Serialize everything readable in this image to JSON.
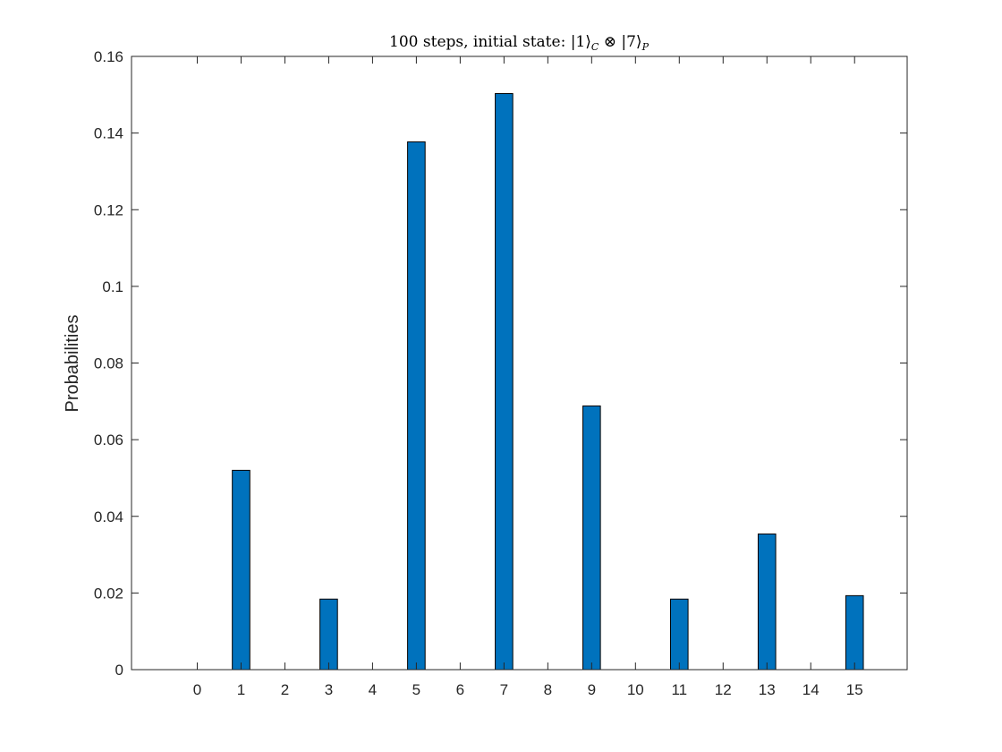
{
  "chart_data": {
    "type": "bar",
    "title": {
      "prefix": "100 steps, initial state: ",
      "ket1": "|1⟩",
      "sub1": "C",
      "op": " ⊗ ",
      "ket2": "|7⟩",
      "sub2": "P"
    },
    "xlabel": "",
    "ylabel": "Probabilities",
    "categories": [
      "0",
      "1",
      "2",
      "3",
      "4",
      "5",
      "6",
      "7",
      "8",
      "9",
      "10",
      "11",
      "12",
      "13",
      "14",
      "15"
    ],
    "values": [
      0,
      0.052,
      0,
      0.0184,
      0,
      0.1377,
      0,
      0.1503,
      0,
      0.0688,
      0,
      0.0184,
      0,
      0.0354,
      0,
      0.0193
    ],
    "ylim": [
      0,
      0.16
    ],
    "yticks": [
      "0",
      "0.02",
      "0.04",
      "0.06",
      "0.08",
      "0.1",
      "0.12",
      "0.14",
      "0.16"
    ],
    "grid": false,
    "colors": {
      "bar": "#0072BD",
      "bar_edge": "#000000",
      "axes": "#262626"
    }
  }
}
